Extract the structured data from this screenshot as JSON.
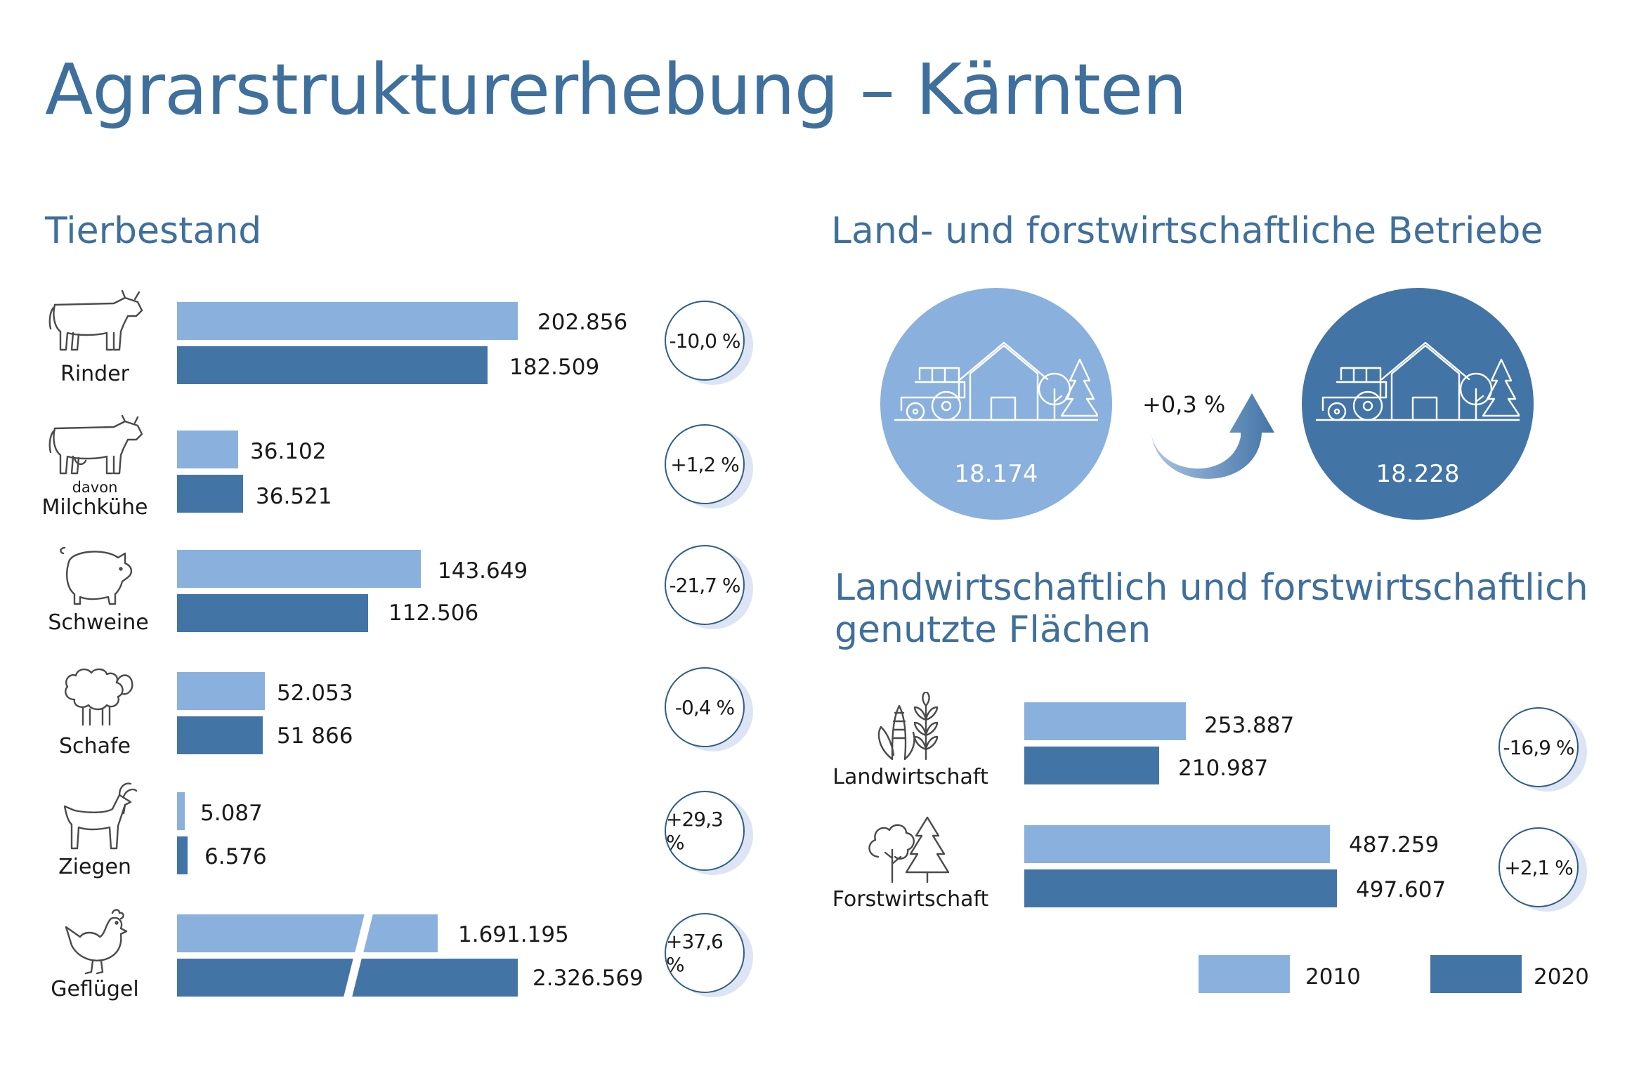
{
  "title": "Agrarstrukturerhebung – Kärnten",
  "sections": {
    "tierbestand": "Tierbestand",
    "betriebe": "Land- und forstwirtschaftliche Betriebe",
    "flaechen_line1": "Landwirtschaftlich und forstwirtschaftlich",
    "flaechen_line2": "genutzte Flächen"
  },
  "colors": {
    "y2010": "#8ab0dd",
    "y2020": "#4374a6",
    "title": "#3f6f9c"
  },
  "chart_data": [
    {
      "type": "bar",
      "orientation": "horizontal",
      "title": "Tierbestand",
      "categories": [
        "Rinder",
        "davon Milchkühe",
        "Schweine",
        "Schafe",
        "Ziegen",
        "Geflügel"
      ],
      "series": [
        {
          "name": "2010",
          "values": [
            202856,
            36102,
            143649,
            52053,
            5087,
            1691195
          ]
        },
        {
          "name": "2020",
          "values": [
            182509,
            36521,
            112506,
            51866,
            6576,
            2326569
          ]
        }
      ],
      "value_labels_2010": [
        "202.856",
        "36.102",
        "143.649",
        "52.053",
        "5.087",
        "1.691.195"
      ],
      "value_labels_2020": [
        "182.509",
        "36.521",
        "112.506",
        "51 866",
        "6.576",
        "2.326.569"
      ],
      "change_labels": [
        "-10,0 %",
        "+1,2 %",
        "-21,7 %",
        "-0,4 %",
        "+29,3 %",
        "+37,6 %"
      ],
      "broken_axis_category": "Geflügel"
    },
    {
      "type": "bar",
      "title": "Land- und forstwirtschaftliche Betriebe",
      "categories": [
        "2010",
        "2020"
      ],
      "values": [
        18174,
        18228
      ],
      "value_labels": [
        "18.174",
        "18.228"
      ],
      "change_label": "+0,3 %"
    },
    {
      "type": "bar",
      "orientation": "horizontal",
      "title": "Landwirtschaftlich und forstwirtschaftlich genutzte Flächen",
      "categories": [
        "Landwirtschaft",
        "Forstwirtschaft"
      ],
      "series": [
        {
          "name": "2010",
          "values": [
            253887,
            487259
          ]
        },
        {
          "name": "2020",
          "values": [
            210987,
            497607
          ]
        }
      ],
      "value_labels_2010": [
        "253.887",
        "487.259"
      ],
      "value_labels_2020": [
        "210.987",
        "497.607"
      ],
      "change_labels": [
        "-16,9 %",
        "+2,1 %"
      ]
    }
  ],
  "animals": [
    {
      "label": "Rinder",
      "icon": "cow-icon"
    },
    {
      "sublabel": "davon",
      "label": "Milchkühe",
      "icon": "dairy-cow-icon"
    },
    {
      "label": "Schweine",
      "icon": "pig-icon"
    },
    {
      "label": "Schafe",
      "icon": "sheep-icon"
    },
    {
      "label": "Ziegen",
      "icon": "goat-icon"
    },
    {
      "label": "Geflügel",
      "icon": "chicken-icon"
    }
  ],
  "land": [
    {
      "label": "Landwirtschaft",
      "icon": "crops-icon"
    },
    {
      "label": "Forstwirtschaft",
      "icon": "trees-icon"
    }
  ],
  "legend": [
    {
      "label": "2010",
      "color": "#8ab0dd"
    },
    {
      "label": "2020",
      "color": "#4374a6"
    }
  ]
}
